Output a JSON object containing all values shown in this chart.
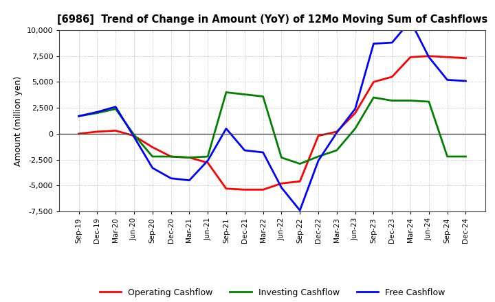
{
  "title": "[6986]  Trend of Change in Amount (YoY) of 12Mo Moving Sum of Cashflows",
  "ylabel": "Amount (million yen)",
  "x_labels": [
    "Sep-19",
    "Dec-19",
    "Mar-20",
    "Jun-20",
    "Sep-20",
    "Dec-20",
    "Mar-21",
    "Jun-21",
    "Sep-21",
    "Dec-21",
    "Mar-22",
    "Jun-22",
    "Sep-22",
    "Dec-22",
    "Mar-23",
    "Jun-23",
    "Sep-23",
    "Dec-23",
    "Mar-24",
    "Jun-24",
    "Sep-24",
    "Dec-24"
  ],
  "operating_cashflow": [
    0,
    200,
    300,
    -200,
    -1300,
    -2200,
    -2300,
    -2800,
    -5300,
    -5400,
    -5400,
    -4800,
    -4600,
    -200,
    200,
    2000,
    5000,
    5500,
    7400,
    7500,
    7400,
    7300
  ],
  "investing_cashflow": [
    1700,
    2000,
    2400,
    -100,
    -2200,
    -2200,
    -2300,
    -2200,
    4000,
    3800,
    3600,
    -2300,
    -2900,
    -2200,
    -1600,
    500,
    3500,
    3200,
    3200,
    3100,
    -2200,
    -2200
  ],
  "free_cashflow": [
    1700,
    2100,
    2600,
    -300,
    -3300,
    -4300,
    -4500,
    -2600,
    500,
    -1600,
    -1800,
    -5200,
    -7400,
    -2600,
    100,
    2400,
    8700,
    8800,
    10900,
    7400,
    5200,
    5100
  ],
  "operating_color": "#FF0000",
  "investing_color": "#008000",
  "free_color": "#0000FF",
  "ylim": [
    -7500,
    10000
  ],
  "yticks": [
    -7500,
    -5000,
    -2500,
    0,
    2500,
    5000,
    7500,
    10000
  ],
  "line_width": 2.0,
  "background_color": "#FFFFFF",
  "grid_color": "#999999"
}
